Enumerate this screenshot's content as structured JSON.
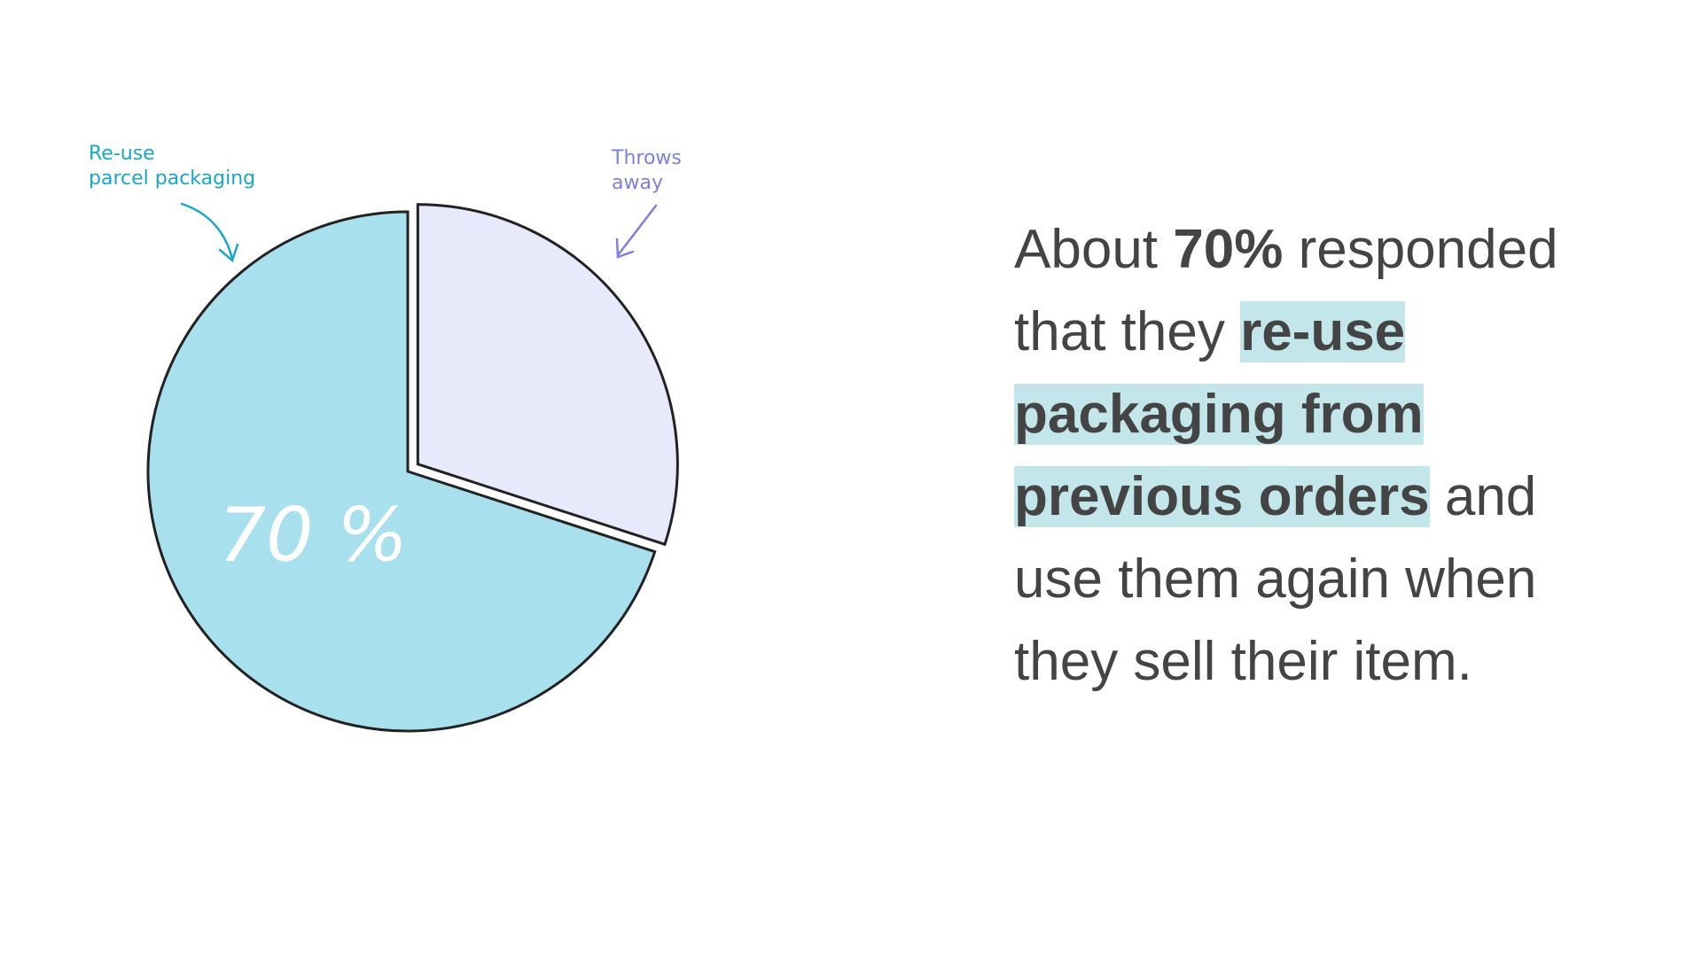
{
  "chart_data": {
    "type": "pie",
    "categories": [
      "Re-use\nparcel packaging",
      "Throws\naway"
    ],
    "values": [
      70,
      30
    ],
    "value_labels": [
      "70 %",
      null
    ],
    "colors": [
      "#a8e0ee",
      "#e8eafc"
    ],
    "label_colors": [
      "#1aa6c8",
      "#7b7fe0"
    ],
    "start_angle": 0,
    "direction": "counterclockwise",
    "exploded": [
      false,
      true
    ]
  },
  "text": {
    "runs": [
      {
        "text": "About "
      },
      {
        "text": "70%",
        "bold": true
      },
      {
        "text": " responded that they "
      },
      {
        "text": "re-use packaging from previous orders",
        "bold": true,
        "highlight": "#c3e6ea"
      },
      {
        "text": " and use them again when they sell their item."
      }
    ]
  }
}
